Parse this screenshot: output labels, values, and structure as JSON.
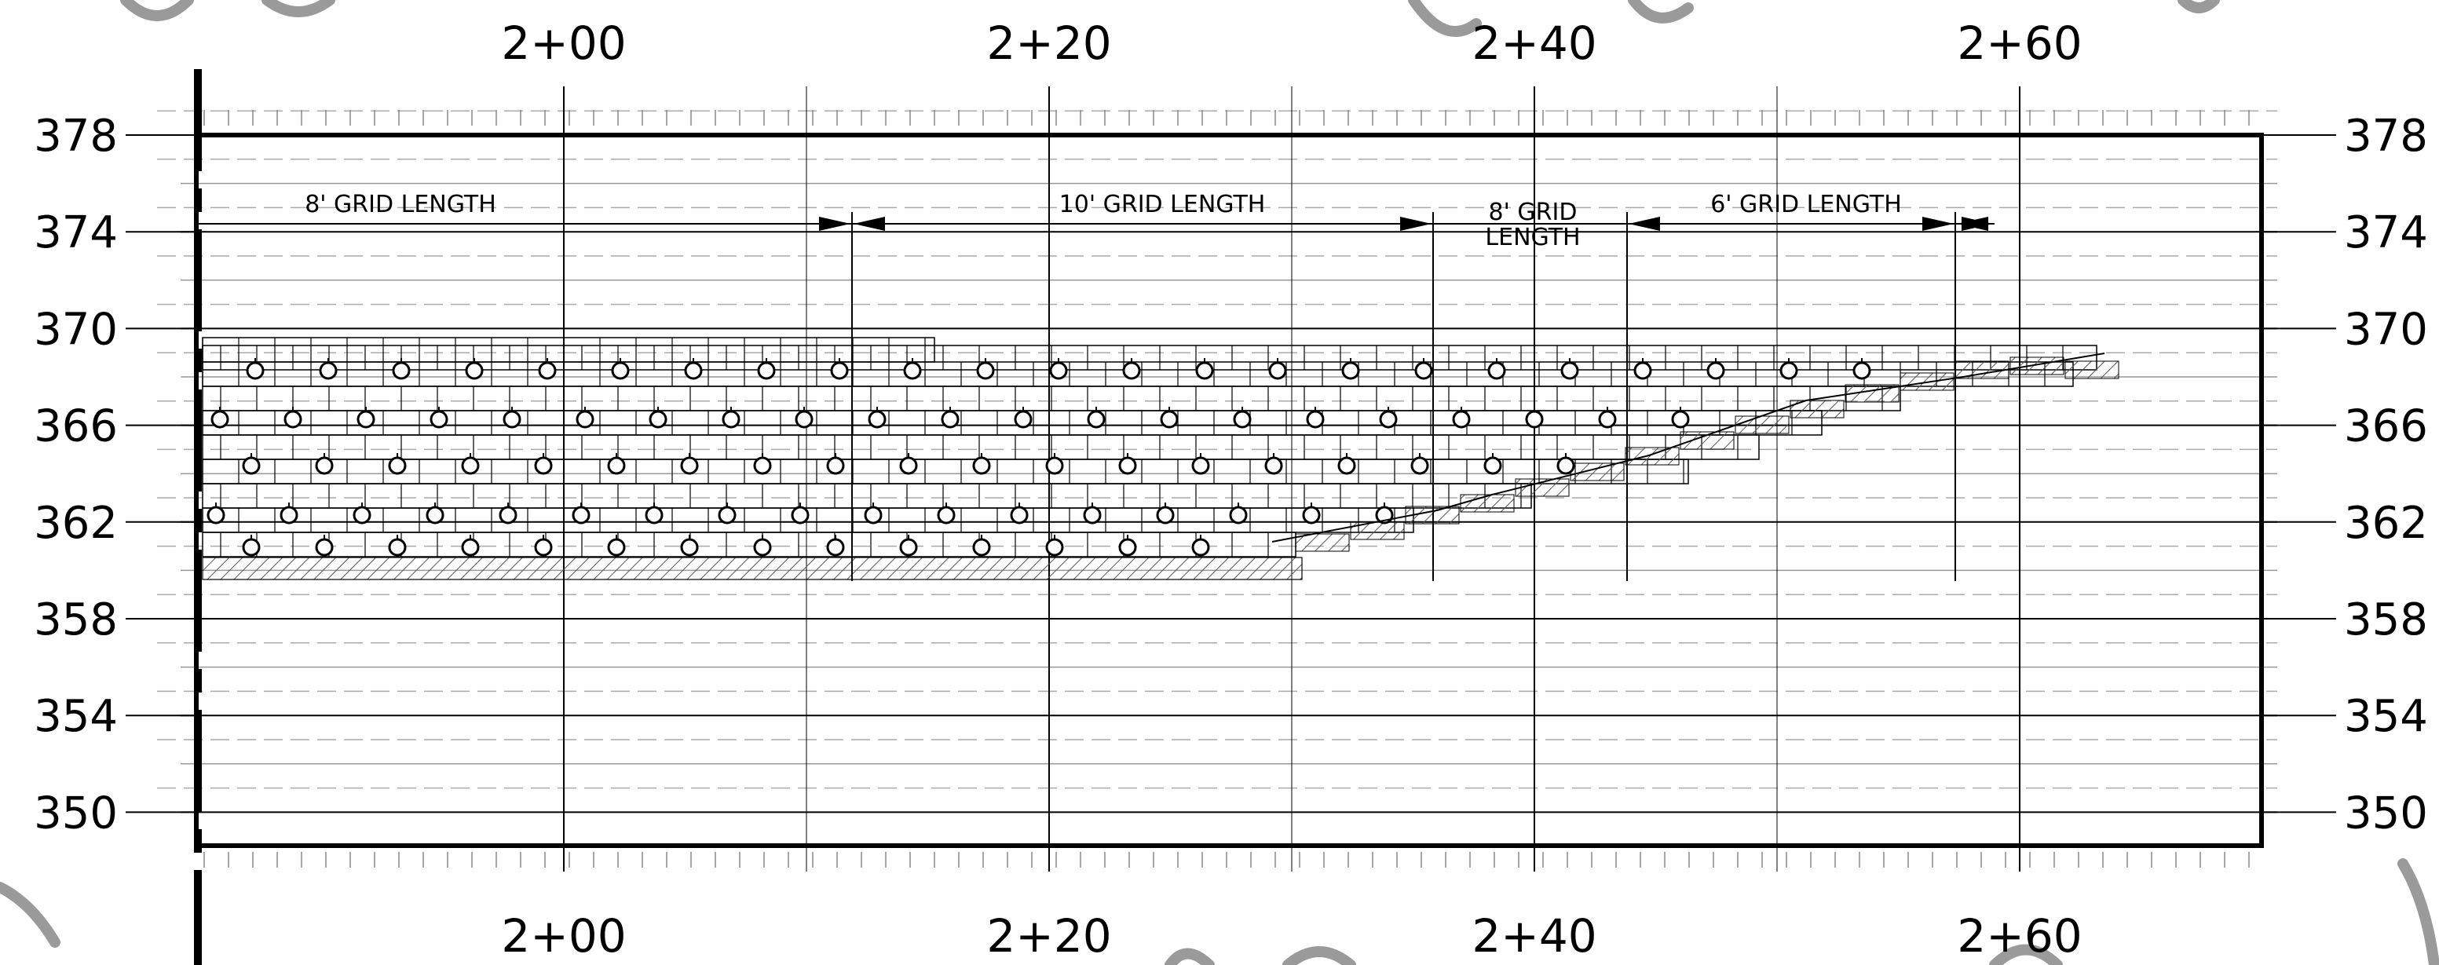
{
  "elevations": [
    "378",
    "374",
    "370",
    "366",
    "362",
    "358",
    "354",
    "350"
  ],
  "stations": [
    "2+00",
    "2+20",
    "2+40",
    "2+60"
  ],
  "grid_lengths": [
    {
      "label": "8' GRID LENGTH"
    },
    {
      "label": "10' GRID LENGTH"
    },
    {
      "label": "8' GRID",
      "label2": "LENGTH"
    },
    {
      "label": "6' GRID LENGTH"
    }
  ],
  "colors": {
    "line": "#000000",
    "grid": "#999999",
    "hatch": "#555555",
    "cloud": "#9a9a9a"
  },
  "symbols": {
    "geogrid_marker": "circle-tick-icon",
    "hatch": "diagonal-hatch"
  }
}
